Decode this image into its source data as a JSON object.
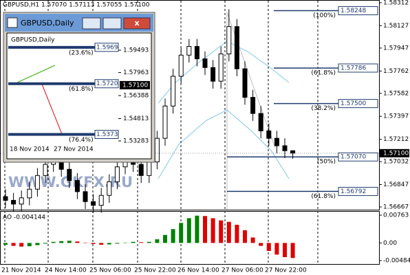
{
  "header": "GBPUSD,H1  1.57070 1.57113 1.57055 1.57100",
  "watermark": "WWW.GKFX.RU",
  "main": {
    "ylim": [
      1.56667,
      1.58312
    ],
    "yticks": [
      1.58312,
      1.58127,
      1.57947,
      1.57762,
      1.57582,
      1.57397,
      1.57212,
      1.57032,
      1.56847,
      1.56667
    ],
    "current": {
      "value": 1.571,
      "label": "1.57100"
    },
    "candles": [
      [
        1.5675,
        1.5681,
        1.5666,
        1.5672
      ],
      [
        1.5672,
        1.5678,
        1.5663,
        1.5669
      ],
      [
        1.5669,
        1.568,
        1.5663,
        1.5674
      ],
      [
        1.5674,
        1.5687,
        1.5668,
        1.5681
      ],
      [
        1.5681,
        1.5698,
        1.5675,
        1.5692
      ],
      [
        1.5692,
        1.5707,
        1.5686,
        1.5701
      ],
      [
        1.5701,
        1.5712,
        1.5695,
        1.5706
      ],
      [
        1.5706,
        1.5712,
        1.5691,
        1.5697
      ],
      [
        1.5697,
        1.5703,
        1.5682,
        1.5688
      ],
      [
        1.5688,
        1.5694,
        1.5673,
        1.5679
      ],
      [
        1.5679,
        1.5685,
        1.5665,
        1.5671
      ],
      [
        1.5671,
        1.5677,
        1.5662,
        1.5668
      ],
      [
        1.5668,
        1.5682,
        1.5662,
        1.5676
      ],
      [
        1.5676,
        1.5693,
        1.567,
        1.5687
      ],
      [
        1.5687,
        1.5705,
        1.5681,
        1.5699
      ],
      [
        1.5699,
        1.5714,
        1.5693,
        1.5708
      ],
      [
        1.5708,
        1.5714,
        1.5695,
        1.5701
      ],
      [
        1.5701,
        1.5707,
        1.5686,
        1.5692
      ],
      [
        1.5692,
        1.5709,
        1.5686,
        1.5703
      ],
      [
        1.5703,
        1.5728,
        1.5697,
        1.5722
      ],
      [
        1.5722,
        1.5754,
        1.5716,
        1.5748
      ],
      [
        1.5748,
        1.5778,
        1.5742,
        1.5772
      ],
      [
        1.5772,
        1.5795,
        1.5766,
        1.5789
      ],
      [
        1.5789,
        1.5802,
        1.5783,
        1.5796
      ],
      [
        1.5796,
        1.5802,
        1.578,
        1.5786
      ],
      [
        1.5786,
        1.5792,
        1.5773,
        1.5779
      ],
      [
        1.5779,
        1.5785,
        1.5762,
        1.5768
      ],
      [
        1.5768,
        1.5796,
        1.5762,
        1.579
      ],
      [
        1.579,
        1.5826,
        1.5784,
        1.5812
      ],
      [
        1.5812,
        1.5818,
        1.5772,
        1.5778
      ],
      [
        1.5778,
        1.5784,
        1.5749,
        1.5755
      ],
      [
        1.5755,
        1.5761,
        1.5736,
        1.5742
      ],
      [
        1.5742,
        1.5748,
        1.5722,
        1.5728
      ],
      [
        1.5728,
        1.5734,
        1.5716,
        1.5722
      ],
      [
        1.5722,
        1.5728,
        1.571,
        1.5716
      ],
      [
        1.5716,
        1.5722,
        1.5706,
        1.5712
      ],
      [
        1.5712,
        1.57113,
        1.57055,
        1.571
      ]
    ],
    "fib": [
      {
        "value": 1.58248,
        "pct": "(100%)"
      },
      {
        "value": 1.57786,
        "pct": "(61.8%)"
      },
      {
        "value": 1.575,
        "label": "1.57500",
        "pct": "(38.2%)"
      },
      {
        "value": 1.5707,
        "label": "1.57070",
        "pct": "(50%)"
      },
      {
        "value": 1.56792,
        "pct": "(61.8%)"
      }
    ]
  },
  "ao": {
    "title": "AO -0.004144",
    "ylim": [
      -0.00484,
      0.00763
    ],
    "yticks": [
      0.00763,
      {
        "value": 0,
        "label": "0.00"
      },
      -0.00484
    ],
    "up_color": "#008000",
    "down_color": "#e00000",
    "values": [
      -0.0005,
      -0.0008,
      -0.001,
      -0.0009,
      -0.0006,
      -0.0002,
      0.0003,
      0.0005,
      0.0006,
      0.0004,
      0.0001,
      -0.0003,
      -0.0005,
      -0.0004,
      -0.0002,
      0.0001,
      0.0003,
      0.0002,
      0.0003,
      0.001,
      0.0022,
      0.0038,
      0.0055,
      0.0068,
      0.0075,
      0.0074,
      0.0068,
      0.0062,
      0.0058,
      0.005,
      0.0035,
      0.0015,
      -0.0008,
      -0.0022,
      -0.0032,
      -0.0039,
      -0.004144
    ]
  },
  "time_labels": [
    "21 Nov 2014",
    "24 Nov 14:00",
    "25 Nov 06:00",
    "25 Nov 22:00",
    "26 Nov 14:00",
    "27 Nov 06:00",
    "27 Nov 22:00"
  ],
  "inset": {
    "title": "GBPUSD,Daily",
    "chart_title": "GBPUSD,Daily",
    "ylim": [
      1.53283,
      1.59493
    ],
    "yticks": [
      1.59493,
      1.57963,
      1.56388,
      1.54813,
      1.53283
    ],
    "current": {
      "value": 1.571,
      "label": "1.57100"
    },
    "fib": [
      {
        "value": 1.5969,
        "pct": "(23.6%)"
      },
      {
        "value": 1.572,
        "label": "1.5720",
        "pct": "(61.8%)"
      },
      {
        "value": 1.5373,
        "pct": "(76.4%)"
      }
    ],
    "dates": [
      "18 Nov 2014",
      "27 Nov 2014"
    ]
  }
}
